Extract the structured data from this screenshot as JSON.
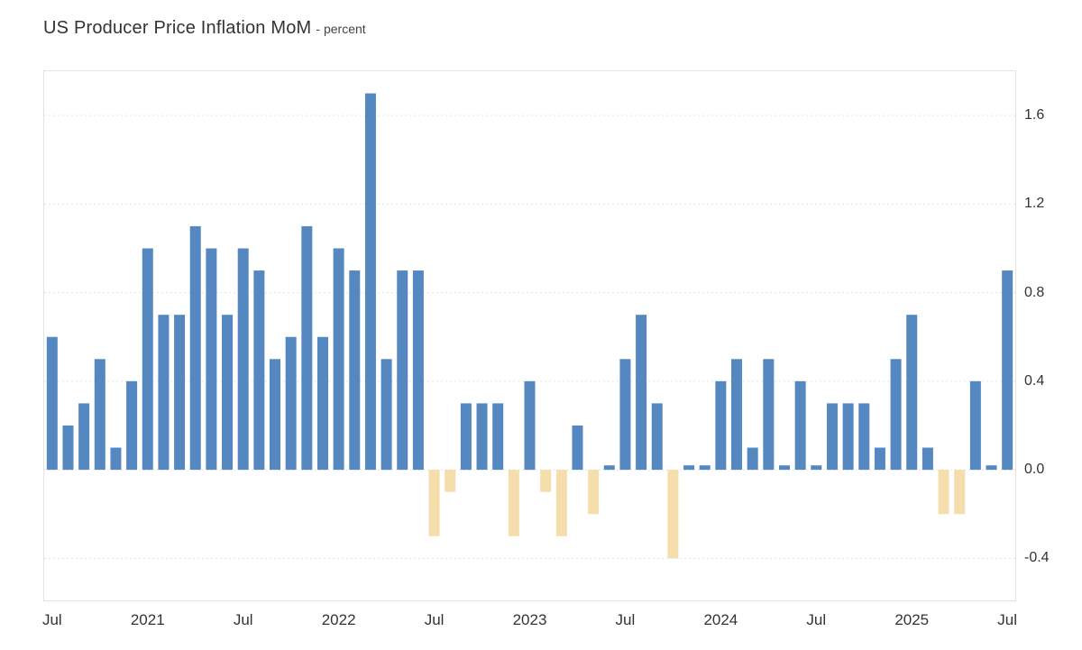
{
  "header": {
    "title": "US Producer Price Inflation MoM",
    "subtitle": "- percent"
  },
  "chart_data": {
    "type": "bar",
    "title": "US Producer Price Inflation MoM",
    "ylabel": "percent",
    "xlabel": "",
    "ylim": [
      -0.59,
      1.8
    ],
    "yticks": [
      -0.4,
      0.0,
      0.4,
      0.8,
      1.2,
      1.6
    ],
    "grid": true,
    "legend_position": "none",
    "positive_color": "#5588c0",
    "negative_color": "#f5deab",
    "months": [
      "Jul 2020",
      "Aug 2020",
      "Sep 2020",
      "Oct 2020",
      "Nov 2020",
      "Dec 2020",
      "Jan 2021",
      "Feb 2021",
      "Mar 2021",
      "Apr 2021",
      "May 2021",
      "Jun 2021",
      "Jul 2021",
      "Aug 2021",
      "Sep 2021",
      "Oct 2021",
      "Nov 2021",
      "Dec 2021",
      "Jan 2022",
      "Feb 2022",
      "Mar 2022",
      "Apr 2022",
      "May 2022",
      "Jun 2022",
      "Jul 2022",
      "Aug 2022",
      "Sep 2022",
      "Oct 2022",
      "Nov 2022",
      "Dec 2022",
      "Jan 2023",
      "Feb 2023",
      "Mar 2023",
      "Apr 2023",
      "May 2023",
      "Jun 2023",
      "Jul 2023",
      "Aug 2023",
      "Sep 2023",
      "Oct 2023",
      "Nov 2023",
      "Dec 2023",
      "Jan 2024",
      "Feb 2024",
      "Mar 2024",
      "Apr 2024",
      "May 2024",
      "Jun 2024",
      "Jul 2024",
      "Aug 2024",
      "Sep 2024",
      "Oct 2024",
      "Nov 2024",
      "Dec 2024",
      "Jan 2025",
      "Feb 2025",
      "Mar 2025",
      "Apr 2025",
      "May 2025",
      "Jun 2025",
      "Jul 2025"
    ],
    "values": [
      0.6,
      0.2,
      0.3,
      0.5,
      0.1,
      0.4,
      1.0,
      0.7,
      0.7,
      1.1,
      1.0,
      0.7,
      1.0,
      0.9,
      0.5,
      0.6,
      1.1,
      0.6,
      1.0,
      0.9,
      1.7,
      0.5,
      0.9,
      0.9,
      -0.3,
      -0.1,
      0.3,
      0.3,
      0.3,
      -0.3,
      0.4,
      -0.1,
      -0.3,
      0.2,
      -0.2,
      0.02,
      0.5,
      0.7,
      0.3,
      -0.4,
      0.02,
      0.02,
      0.4,
      0.5,
      0.1,
      0.5,
      0.02,
      0.4,
      0.02,
      0.3,
      0.3,
      0.3,
      0.1,
      0.5,
      0.7,
      0.1,
      -0.2,
      -0.2,
      0.4,
      0.02,
      0.9
    ],
    "xticks": [
      {
        "index": 0,
        "label": "Jul"
      },
      {
        "index": 6,
        "label": "2021"
      },
      {
        "index": 12,
        "label": "Jul"
      },
      {
        "index": 18,
        "label": "2022"
      },
      {
        "index": 24,
        "label": "Jul"
      },
      {
        "index": 30,
        "label": "2023"
      },
      {
        "index": 36,
        "label": "Jul"
      },
      {
        "index": 42,
        "label": "2024"
      },
      {
        "index": 48,
        "label": "Jul"
      },
      {
        "index": 54,
        "label": "2025"
      },
      {
        "index": 60,
        "label": "Jul"
      }
    ]
  }
}
